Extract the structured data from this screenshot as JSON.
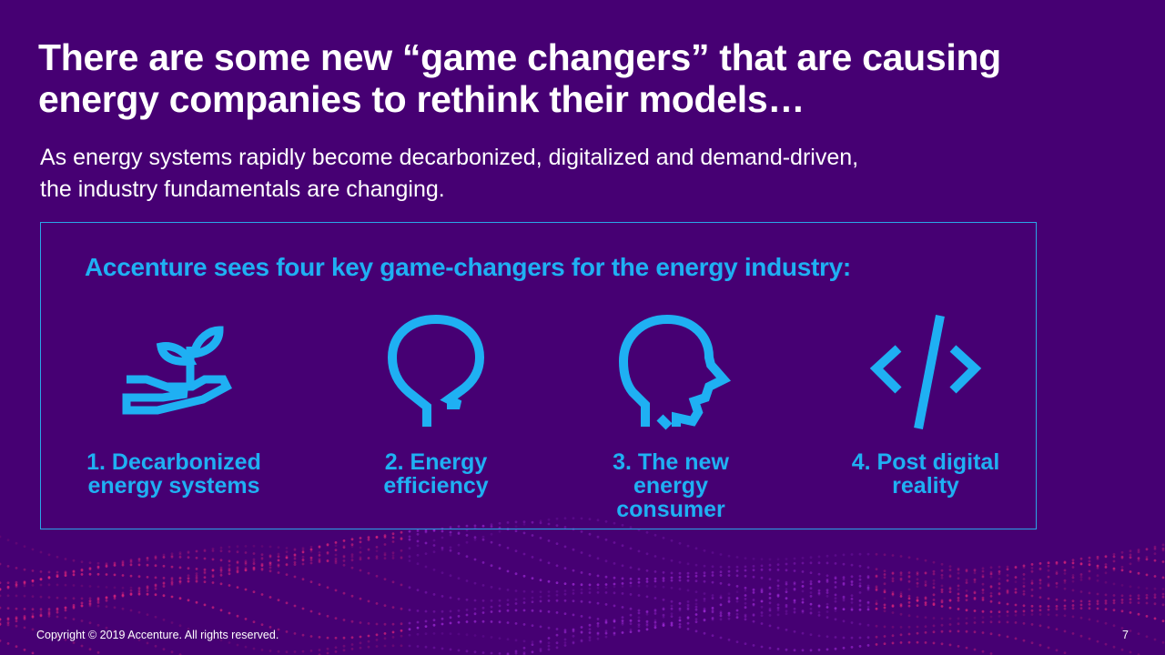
{
  "slide": {
    "title": "There are some new “game changers” that are causing energy companies to rethink their models…",
    "subtitle": "As energy systems rapidly become decarbonized, digitalized and demand-driven, the industry fundamentals are changing.",
    "box_heading": "Accenture sees four key game-changers for the energy industry:",
    "items": [
      {
        "icon": "hand-sprout-icon",
        "label": "1. Decarbonized\nenergy systems"
      },
      {
        "icon": "lightbulb-icon",
        "label": "2. Energy\nefficiency"
      },
      {
        "icon": "head-profile-icon",
        "label": "3. The new\nenergy\nconsumer"
      },
      {
        "icon": "code-brackets-icon",
        "label": "4. Post digital\nreality"
      }
    ],
    "footer": {
      "copyright": "Copyright © 2019 Accenture. All rights reserved.",
      "page_number": "7"
    }
  },
  "colors": {
    "background": "#460073",
    "accent": "#1fb0f3",
    "box_border": "#2aa6e8",
    "text": "#ffffff",
    "wave_pink": "#e0257a",
    "wave_purple": "#a02ad8"
  }
}
